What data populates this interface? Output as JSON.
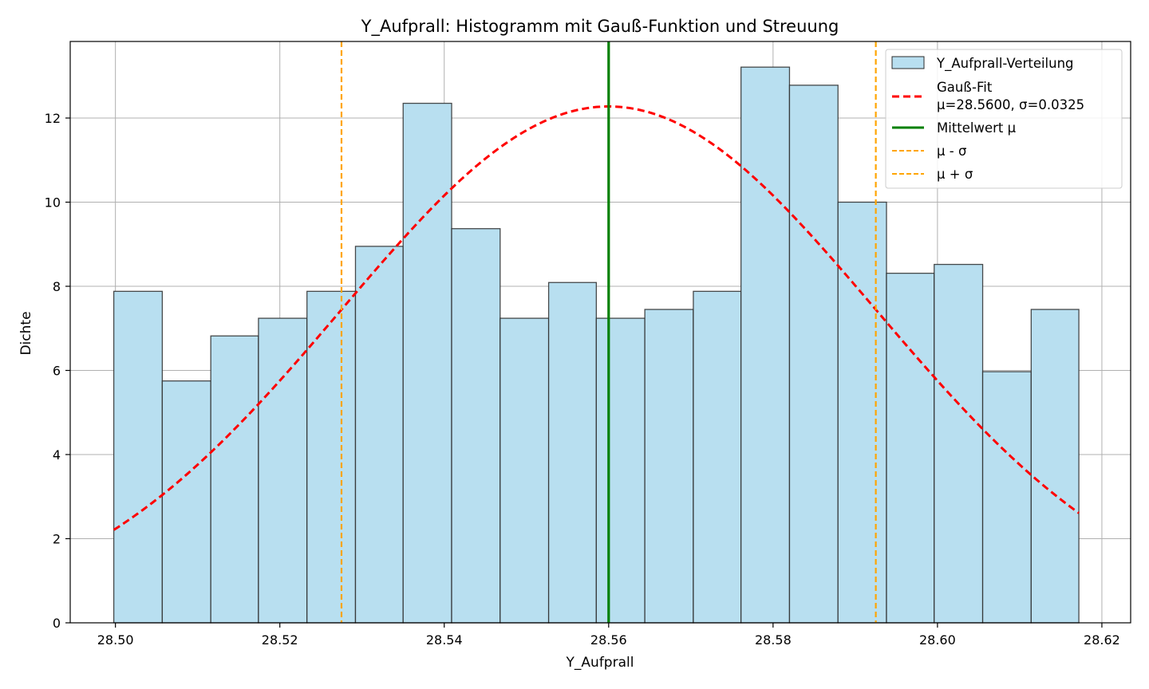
{
  "chart_data": {
    "type": "bar",
    "title": "Y_Aufprall: Histogramm mit Gauß-Funktion und Streuung",
    "xlabel": "Y_Aufprall",
    "ylabel": "Dichte",
    "xlim": [
      28.4945,
      28.6235
    ],
    "ylim": [
      0,
      13.82
    ],
    "grid": true,
    "legend_position": "top-right",
    "xticks": [
      "28.50",
      "28.52",
      "28.54",
      "28.56",
      "28.58",
      "28.60",
      "28.62"
    ],
    "xtick_values": [
      28.5,
      28.52,
      28.54,
      28.56,
      28.58,
      28.6,
      28.62
    ],
    "yticks": [
      "0",
      "2",
      "4",
      "6",
      "8",
      "10",
      "12"
    ],
    "ytick_values": [
      0,
      2,
      4,
      6,
      8,
      10,
      12
    ],
    "histogram": {
      "name": "Y_Aufprall-Verteilung",
      "color": "#b8dff0",
      "edge_color": "#2b2b2b",
      "bin_edges": [
        28.4998,
        28.5057,
        28.5116,
        28.5174,
        28.5233,
        28.5292,
        28.535,
        28.5409,
        28.5468,
        28.5527,
        28.5585,
        28.5644,
        28.5703,
        28.5761,
        28.582,
        28.5879,
        28.5938,
        28.5996,
        28.6055,
        28.6114,
        28.6172
      ],
      "values": [
        7.88,
        5.75,
        6.82,
        7.24,
        7.88,
        8.95,
        12.35,
        9.37,
        7.24,
        8.09,
        7.24,
        7.45,
        7.88,
        13.21,
        12.78,
        10.0,
        8.31,
        8.52,
        5.97,
        7.45
      ]
    },
    "gauss_fit": {
      "name_line1": "Gauß-Fit",
      "name_line2": "μ=28.5600, σ=0.0325",
      "mu": 28.56,
      "sigma": 0.0325,
      "x_start": 28.4998,
      "x_end": 28.6172,
      "color": "#ff0000"
    },
    "mean_line": {
      "name": "Mittelwert μ",
      "x": 28.56,
      "color": "#008000"
    },
    "minus_sigma_line": {
      "name": "μ - σ",
      "x": 28.5275,
      "color": "#ffa500"
    },
    "plus_sigma_line": {
      "name": "μ + σ",
      "x": 28.5925,
      "color": "#ffa500"
    }
  }
}
